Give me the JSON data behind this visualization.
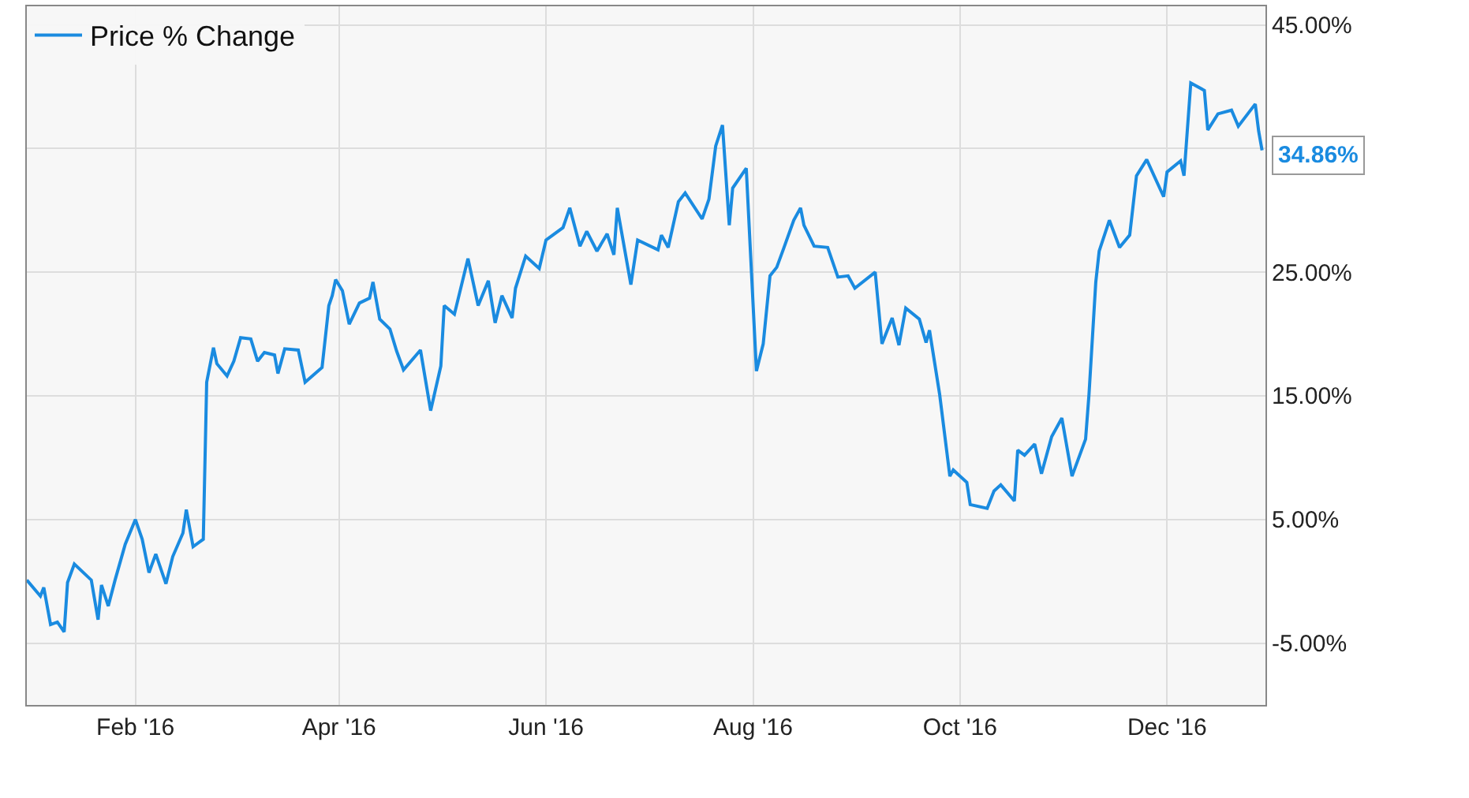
{
  "chart_data": {
    "type": "line",
    "x": [
      "2015-12-31",
      "2016-01-04",
      "2016-01-05",
      "2016-01-07",
      "2016-01-09",
      "2016-01-11",
      "2016-01-12",
      "2016-01-14",
      "2016-01-19",
      "2016-01-21",
      "2016-01-22",
      "2016-01-24",
      "2016-01-26",
      "2016-01-29",
      "2016-02-01",
      "2016-02-03",
      "2016-02-05",
      "2016-02-07",
      "2016-02-10",
      "2016-02-12",
      "2016-02-15",
      "2016-02-16",
      "2016-02-18",
      "2016-02-21",
      "2016-02-22",
      "2016-02-24",
      "2016-02-25",
      "2016-02-28",
      "2016-03-01",
      "2016-03-03",
      "2016-03-06",
      "2016-03-08",
      "2016-03-10",
      "2016-03-13",
      "2016-03-14",
      "2016-03-16",
      "2016-03-20",
      "2016-03-22",
      "2016-03-27",
      "2016-03-29",
      "2016-03-30",
      "2016-03-31",
      "2016-04-02",
      "2016-04-04",
      "2016-04-07",
      "2016-04-10",
      "2016-04-11",
      "2016-04-13",
      "2016-04-16",
      "2016-04-18",
      "2016-04-20",
      "2016-04-25",
      "2016-04-28",
      "2016-05-01",
      "2016-05-02",
      "2016-05-05",
      "2016-05-09",
      "2016-05-12",
      "2016-05-15",
      "2016-05-17",
      "2016-05-19",
      "2016-05-22",
      "2016-05-23",
      "2016-05-26",
      "2016-05-30",
      "2016-06-01",
      "2016-06-06",
      "2016-06-08",
      "2016-06-11",
      "2016-06-13",
      "2016-06-16",
      "2016-06-19",
      "2016-06-21",
      "2016-06-22",
      "2016-06-26",
      "2016-06-28",
      "2016-07-04",
      "2016-07-05",
      "2016-07-07",
      "2016-07-10",
      "2016-07-12",
      "2016-07-17",
      "2016-07-19",
      "2016-07-21",
      "2016-07-23",
      "2016-07-25",
      "2016-07-26",
      "2016-07-30",
      "2016-08-02",
      "2016-08-04",
      "2016-08-06",
      "2016-08-08",
      "2016-08-10",
      "2016-08-13",
      "2016-08-15",
      "2016-08-16",
      "2016-08-19",
      "2016-08-23",
      "2016-08-26",
      "2016-08-29",
      "2016-08-31",
      "2016-09-06",
      "2016-09-08",
      "2016-09-11",
      "2016-09-13",
      "2016-09-15",
      "2016-09-19",
      "2016-09-21",
      "2016-09-22",
      "2016-09-25",
      "2016-09-28",
      "2016-09-29",
      "2016-10-03",
      "2016-10-04",
      "2016-10-09",
      "2016-10-11",
      "2016-10-13",
      "2016-10-17",
      "2016-10-18",
      "2016-10-20",
      "2016-10-23",
      "2016-10-25",
      "2016-10-28",
      "2016-10-31",
      "2016-11-03",
      "2016-11-07",
      "2016-11-08",
      "2016-11-10",
      "2016-11-11",
      "2016-11-14",
      "2016-11-17",
      "2016-11-20",
      "2016-11-22",
      "2016-11-25",
      "2016-11-30",
      "2016-12-01",
      "2016-12-05",
      "2016-12-06",
      "2016-12-08",
      "2016-12-12",
      "2016-12-13",
      "2016-12-16",
      "2016-12-20",
      "2016-12-22",
      "2016-12-27",
      "2016-12-28",
      "2016-12-29"
    ],
    "series": [
      {
        "name": "Price % Change",
        "color": "#1a8be0",
        "values": [
          0.1,
          -1.2,
          -0.5,
          -3.5,
          -3.3,
          -4.1,
          -0.1,
          1.4,
          0.1,
          -3.1,
          -0.3,
          -2.0,
          0.1,
          3.0,
          5.0,
          3.4,
          0.7,
          2.2,
          -0.2,
          2.0,
          3.9,
          5.8,
          2.8,
          3.4,
          16.1,
          18.9,
          17.6,
          16.6,
          17.8,
          19.7,
          19.6,
          17.8,
          18.5,
          18.3,
          16.8,
          18.8,
          18.7,
          16.1,
          17.3,
          22.3,
          23.1,
          24.4,
          23.5,
          20.8,
          22.5,
          22.9,
          24.2,
          21.2,
          20.4,
          18.6,
          17.1,
          18.7,
          13.8,
          17.4,
          22.3,
          21.6,
          26.1,
          22.3,
          24.3,
          20.9,
          23.1,
          21.3,
          23.7,
          26.3,
          25.3,
          27.6,
          28.6,
          30.2,
          27.1,
          28.3,
          26.7,
          28.1,
          26.4,
          30.2,
          24.0,
          27.6,
          26.8,
          28.0,
          27.0,
          30.7,
          31.4,
          29.3,
          30.9,
          35.2,
          36.9,
          28.8,
          31.8,
          33.4,
          17.0,
          19.2,
          24.7,
          25.4,
          26.9,
          29.2,
          30.2,
          28.8,
          27.1,
          27.0,
          24.6,
          24.7,
          23.7,
          25.0,
          19.2,
          21.3,
          19.1,
          22.1,
          21.2,
          19.3,
          20.3,
          15.1,
          8.5,
          9.0,
          8.0,
          6.2,
          5.9,
          7.3,
          7.8,
          6.5,
          10.6,
          10.2,
          11.1,
          8.7,
          11.7,
          13.2,
          8.5,
          11.5,
          15.1,
          24.2,
          26.7,
          29.2,
          27.0,
          28.0,
          32.8,
          34.1,
          31.1,
          33.1,
          34.0,
          32.8,
          40.3,
          39.7,
          36.5,
          37.8,
          38.1,
          36.8,
          38.6,
          36.4,
          34.86
        ]
      }
    ],
    "annotations": [
      {
        "text": "34.86%",
        "x": "2016-12-29",
        "y": 34.86
      }
    ],
    "xlim": [
      "2015-12-31",
      "2016-12-30"
    ],
    "xticks": [
      {
        "value": "2016-02-01",
        "label": "Feb '16"
      },
      {
        "value": "2016-04-01",
        "label": "Apr '16"
      },
      {
        "value": "2016-06-01",
        "label": "Jun '16"
      },
      {
        "value": "2016-08-01",
        "label": "Aug '16"
      },
      {
        "value": "2016-10-01",
        "label": "Oct '16"
      },
      {
        "value": "2016-12-01",
        "label": "Dec '16"
      }
    ],
    "ylim": [
      -10,
      46.5
    ],
    "yticks": [
      {
        "value": -5,
        "label": "-5.00%"
      },
      {
        "value": 5,
        "label": "5.00%"
      },
      {
        "value": 15,
        "label": "15.00%"
      },
      {
        "value": 25,
        "label": "25.00%"
      },
      {
        "value": 35,
        "label": null
      },
      {
        "value": 45,
        "label": "45.00%"
      }
    ],
    "grid": true,
    "legend": "top left",
    "marker": "none",
    "line_style": "solid"
  }
}
